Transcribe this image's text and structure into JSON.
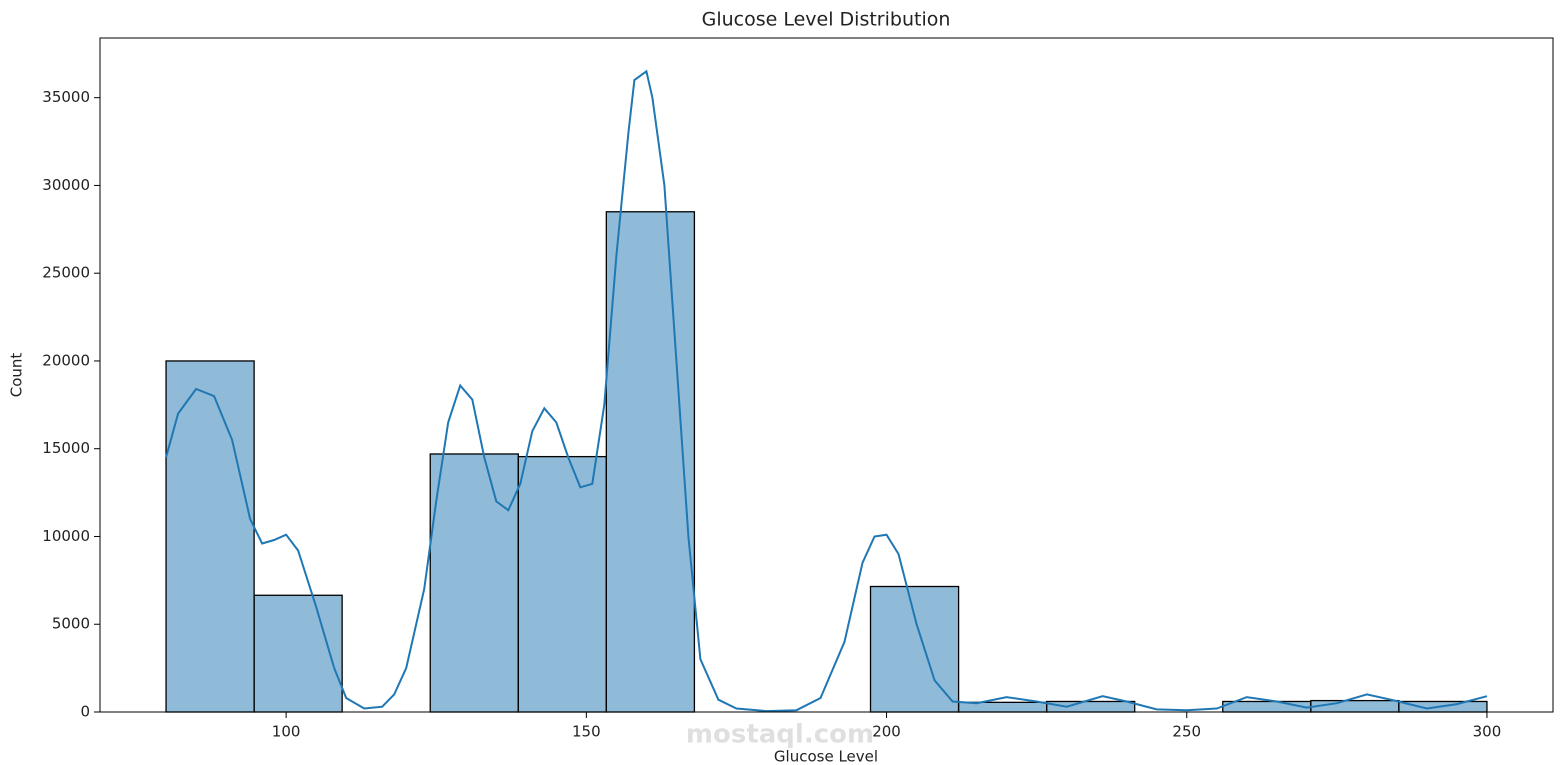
{
  "chart_data": {
    "type": "histogram",
    "title": "Glucose Level Distribution",
    "x_label": "Glucose Level",
    "y_label": "Count",
    "watermark": "mostaql.com",
    "color": "#1f77b4",
    "bins": [
      80,
      94.67,
      109.33,
      124,
      138.67,
      153.33,
      168,
      182.67,
      197.33,
      212,
      226.67,
      241.33,
      256,
      270.67,
      285.33,
      300
    ],
    "values": [
      20000,
      6650,
      0,
      14700,
      14550,
      28500,
      0,
      0,
      7150,
      550,
      600,
      0,
      600,
      650,
      600
    ],
    "kde": {
      "color": "#1f77b4",
      "x": [
        80,
        82,
        85,
        88,
        91,
        94,
        96,
        98,
        100,
        102,
        105,
        108,
        110,
        113,
        116,
        118,
        120,
        123,
        125,
        127,
        129,
        131,
        133,
        135,
        137,
        139,
        141,
        143,
        145,
        147,
        149,
        151,
        153,
        155,
        157,
        158,
        160,
        161,
        163,
        165,
        167,
        169,
        172,
        175,
        180,
        185,
        189,
        193,
        196,
        198,
        200,
        202,
        205,
        208,
        211,
        215,
        220,
        225,
        230,
        236,
        240,
        245,
        250,
        255,
        260,
        265,
        270,
        275,
        280,
        284,
        290,
        295,
        300
      ],
      "values": [
        14500,
        17000,
        18400,
        18000,
        15500,
        11000,
        9600,
        9800,
        10100,
        9200,
        6000,
        2500,
        800,
        200,
        300,
        1000,
        2500,
        7000,
        12000,
        16500,
        18600,
        17800,
        14500,
        12000,
        11500,
        13000,
        16000,
        17300,
        16500,
        14500,
        12800,
        13000,
        17500,
        26000,
        33000,
        36000,
        36500,
        35000,
        30000,
        20000,
        10000,
        3000,
        700,
        200,
        50,
        100,
        800,
        4000,
        8500,
        10000,
        10100,
        9000,
        5000,
        1800,
        600,
        500,
        850,
        600,
        300,
        900,
        600,
        150,
        100,
        200,
        850,
        600,
        250,
        500,
        1000,
        700,
        200,
        450,
        900
      ]
    },
    "xlim": [
      69,
      311
    ],
    "ylim": [
      0,
      38400
    ],
    "xticks": [
      100,
      150,
      200,
      250,
      300
    ],
    "yticks": [
      0,
      5000,
      10000,
      15000,
      20000,
      25000,
      30000,
      35000
    ]
  }
}
